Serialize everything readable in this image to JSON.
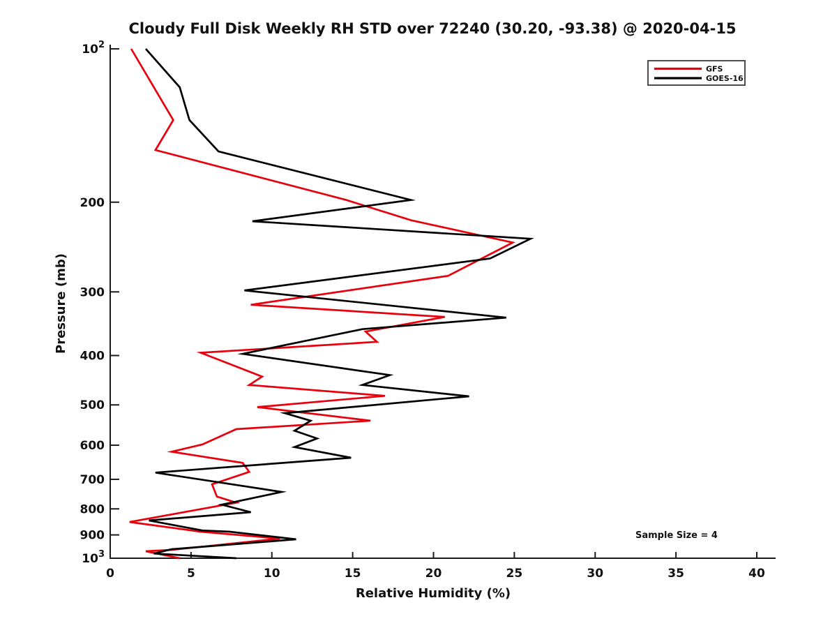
{
  "chart_data": {
    "type": "line",
    "title": "Cloudy Full Disk Weekly RH STD over 72240 (30.20, -93.38) @ 2020-04-15",
    "xlabel": "Relative Humidity (%)",
    "ylabel": "Pressure (mb)",
    "note": "Sample Size = 4",
    "x_axis": {
      "min": 0,
      "max": 40,
      "ticks": [
        "0",
        "5",
        "10",
        "15",
        "20",
        "25",
        "30",
        "35",
        "40"
      ],
      "tick_values": [
        0,
        5,
        10,
        15,
        20,
        25,
        30,
        35,
        40
      ]
    },
    "y_axis": {
      "scale": "log",
      "min": 100,
      "max": 1000,
      "inverted": true,
      "ticks": [
        {
          "p": 100,
          "base": "10",
          "exp": "2"
        },
        {
          "p": 200,
          "label": "200"
        },
        {
          "p": 300,
          "label": "300"
        },
        {
          "p": 400,
          "label": "400"
        },
        {
          "p": 500,
          "label": "500"
        },
        {
          "p": 600,
          "label": "600"
        },
        {
          "p": 700,
          "label": "700"
        },
        {
          "p": 800,
          "label": "800"
        },
        {
          "p": 900,
          "label": "900"
        },
        {
          "p": 1000,
          "base": "10",
          "exp": "3"
        }
      ]
    },
    "grid": false,
    "legend_position": "top-right",
    "axis_color": "#1a1a1a",
    "series": [
      {
        "name": "GFS",
        "color": "#e8000d",
        "points_rh_p": [
          [
            1.3,
            100
          ],
          [
            3.9,
            138
          ],
          [
            2.8,
            158
          ],
          [
            14.6,
            198
          ],
          [
            18.6,
            217
          ],
          [
            24.9,
            240
          ],
          [
            20.9,
            279
          ],
          [
            8.7,
            318
          ],
          [
            20.7,
            336
          ],
          [
            15.8,
            359
          ],
          [
            16.5,
            376
          ],
          [
            5.6,
            395
          ],
          [
            9.4,
            440
          ],
          [
            8.6,
            457
          ],
          [
            17.0,
            480
          ],
          [
            9.1,
            505
          ],
          [
            16.1,
            537
          ],
          [
            7.8,
            558
          ],
          [
            5.7,
            598
          ],
          [
            3.8,
            618
          ],
          [
            8.2,
            650
          ],
          [
            8.6,
            677
          ],
          [
            6.3,
            716
          ],
          [
            6.6,
            757
          ],
          [
            7.8,
            778
          ],
          [
            1.2,
            849
          ],
          [
            5.6,
            887
          ],
          [
            10.5,
            915
          ],
          [
            3.8,
            963
          ],
          [
            2.2,
            969
          ],
          [
            4.3,
            1000
          ]
        ]
      },
      {
        "name": "GOES-16",
        "color": "#000000",
        "points_rh_p": [
          [
            2.2,
            100
          ],
          [
            4.3,
            119
          ],
          [
            4.9,
            138
          ],
          [
            6.7,
            159
          ],
          [
            18.6,
            198
          ],
          [
            8.8,
            218
          ],
          [
            26.0,
            236
          ],
          [
            23.5,
            258
          ],
          [
            8.3,
            298
          ],
          [
            24.5,
            337
          ],
          [
            15.6,
            355
          ],
          [
            8.2,
            397
          ],
          [
            17.3,
            437
          ],
          [
            15.6,
            457
          ],
          [
            22.2,
            481
          ],
          [
            10.8,
            519
          ],
          [
            12.4,
            537
          ],
          [
            11.4,
            562
          ],
          [
            12.8,
            582
          ],
          [
            11.4,
            605
          ],
          [
            14.9,
            635
          ],
          [
            2.8,
            679
          ],
          [
            10.6,
            741
          ],
          [
            6.9,
            785
          ],
          [
            8.7,
            812
          ],
          [
            2.4,
            843
          ],
          [
            5.7,
            882
          ],
          [
            7.4,
            887
          ],
          [
            11.5,
            918
          ],
          [
            3.8,
            960
          ],
          [
            2.7,
            979
          ],
          [
            7.8,
            1000
          ]
        ]
      }
    ]
  }
}
